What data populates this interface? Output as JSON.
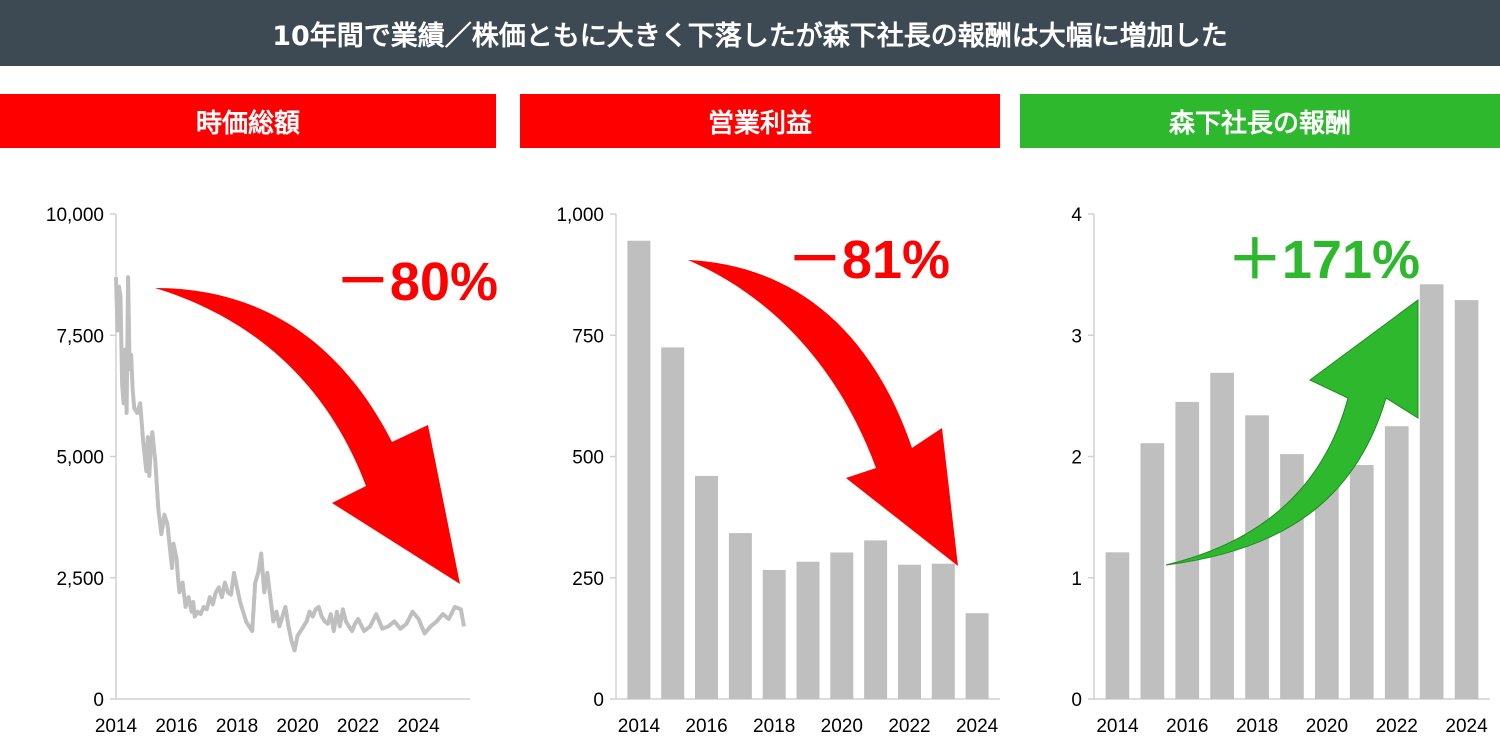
{
  "title": "10年間で業績／株価ともに大きく下落したが森下社長の報酬は大幅に増加した",
  "colors": {
    "title_bg": "#3d4a54",
    "red": "#ff0000",
    "green": "#2eb82e",
    "gray": "#bfbfbf"
  },
  "panels": [
    {
      "header": "時価総額",
      "header_color": "#ff0000",
      "change": "－80%",
      "change_color": "#ff0000"
    },
    {
      "header": "営業利益",
      "header_color": "#ff0000",
      "change": "－81%",
      "change_color": "#ff0000"
    },
    {
      "header": "森下社長の報酬",
      "header_color": "#2eb82e",
      "change": "＋171%",
      "change_color": "#2eb82e"
    }
  ],
  "chart_data": [
    {
      "type": "line",
      "title": "時価総額",
      "ylim": [
        0,
        10000
      ],
      "yticks": [
        "0",
        "2,500",
        "5,000",
        "7,500",
        "10,000"
      ],
      "xlim": [
        2014,
        2025.7
      ],
      "xticks": [
        "2014",
        "2016",
        "2018",
        "2020",
        "2022",
        "2024"
      ],
      "grid": false,
      "series": [
        {
          "x": [
            2014.0,
            2014.05,
            2014.1,
            2014.15,
            2014.2,
            2014.25,
            2014.3,
            2014.35,
            2014.4,
            2014.45,
            2014.5,
            2014.55,
            2014.6,
            2014.7,
            2014.8,
            2014.9,
            2015.0,
            2015.05,
            2015.1,
            2015.15,
            2015.2,
            2015.3,
            2015.4,
            2015.5,
            2015.6,
            2015.7,
            2015.8,
            2015.85,
            2015.9,
            2016.0,
            2016.05,
            2016.1,
            2016.2,
            2016.3,
            2016.4,
            2016.5,
            2016.55,
            2016.6,
            2016.7,
            2016.8,
            2016.9,
            2017.0,
            2017.1,
            2017.2,
            2017.3,
            2017.4,
            2017.5,
            2017.6,
            2017.7,
            2017.8,
            2017.9,
            2018.0,
            2018.1,
            2018.2,
            2018.3,
            2018.4,
            2018.5,
            2018.6,
            2018.7,
            2018.8,
            2018.9,
            2019.0,
            2019.1,
            2019.2,
            2019.3,
            2019.4,
            2019.5,
            2019.6,
            2019.7,
            2019.8,
            2019.9,
            2020.0,
            2020.1,
            2020.2,
            2020.3,
            2020.4,
            2020.5,
            2020.6,
            2020.7,
            2020.8,
            2020.9,
            2021.0,
            2021.1,
            2021.2,
            2021.3,
            2021.4,
            2021.5,
            2021.6,
            2021.7,
            2021.8,
            2021.9,
            2022.0,
            2022.2,
            2022.4,
            2022.6,
            2022.8,
            2023.0,
            2023.2,
            2023.4,
            2023.6,
            2023.8,
            2024.0,
            2024.2,
            2024.4,
            2024.6,
            2024.8,
            2025.0,
            2025.2,
            2025.4,
            2025.5
          ],
          "y": [
            8700,
            7600,
            8500,
            8300,
            6500,
            6100,
            7200,
            5900,
            8700,
            6800,
            7100,
            6400,
            6000,
            5900,
            6100,
            5300,
            4700,
            5400,
            4600,
            5200,
            5500,
            4900,
            3900,
            3400,
            3800,
            3600,
            3000,
            2700,
            3200,
            2900,
            2500,
            2200,
            2400,
            1900,
            2100,
            1800,
            2000,
            1700,
            1800,
            1750,
            1900,
            1850,
            2100,
            1950,
            2200,
            2300,
            2100,
            2400,
            2200,
            2150,
            2600,
            2300,
            2000,
            1800,
            1600,
            1500,
            1400,
            2400,
            2600,
            3000,
            2200,
            2600,
            2100,
            1600,
            1800,
            1500,
            1700,
            1900,
            1500,
            1200,
            1000,
            1300,
            1400,
            1500,
            1600,
            1800,
            1700,
            1850,
            1900,
            1700,
            1600,
            1550,
            1750,
            1400,
            1800,
            1500,
            1850,
            1600,
            1500,
            1400,
            1550,
            1650,
            1400,
            1500,
            1750,
            1450,
            1500,
            1600,
            1450,
            1550,
            1800,
            1650,
            1350,
            1500,
            1600,
            1750,
            1650,
            1900,
            1850,
            1500
          ]
        }
      ]
    },
    {
      "type": "bar",
      "title": "営業利益",
      "categories": [
        "2014",
        "2015",
        "2016",
        "2017",
        "2018",
        "2019",
        "2020",
        "2021",
        "2022",
        "2023",
        "2024"
      ],
      "values": [
        945,
        725,
        460,
        342,
        266,
        283,
        302,
        327,
        277,
        279,
        177
      ],
      "ylim": [
        0,
        1000
      ],
      "yticks": [
        "0",
        "250",
        "500",
        "750",
        "1,000"
      ],
      "xticks": [
        "2014",
        "2016",
        "2018",
        "2020",
        "2022",
        "2024"
      ],
      "grid": false
    },
    {
      "type": "bar",
      "title": "森下社長の報酬",
      "categories": [
        "2014",
        "2015",
        "2016",
        "2017",
        "2018",
        "2019",
        "2020",
        "2021",
        "2022",
        "2023",
        "2024"
      ],
      "values": [
        1.21,
        2.11,
        2.45,
        2.69,
        2.34,
        2.02,
        1.85,
        1.93,
        2.25,
        3.42,
        3.29
      ],
      "ylim": [
        0,
        4
      ],
      "yticks": [
        "0",
        "1",
        "2",
        "3",
        "4"
      ],
      "xticks": [
        "2014",
        "2016",
        "2018",
        "2020",
        "2022",
        "2024"
      ],
      "grid": false
    }
  ]
}
